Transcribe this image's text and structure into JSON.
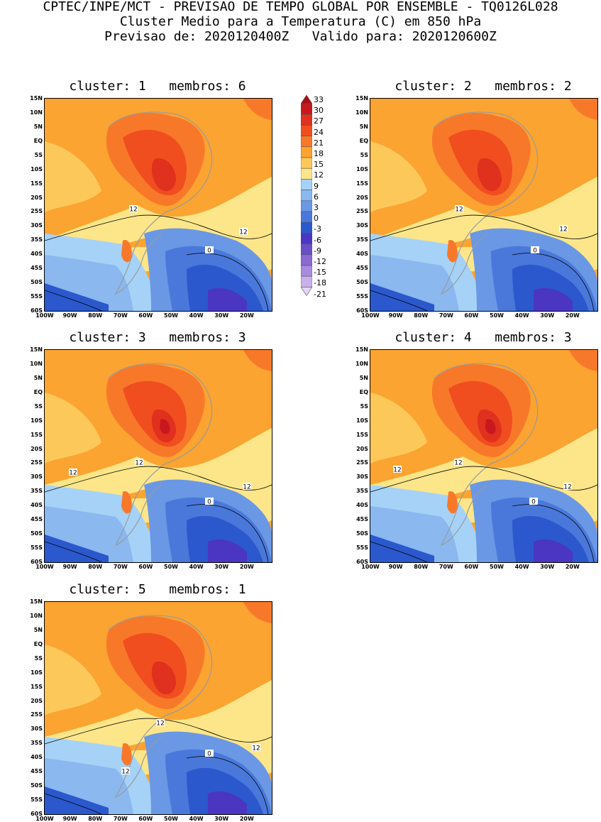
{
  "header": {
    "line1": "CPTEC/INPE/MCT - PREVISAO DE TEMPO GLOBAL POR ENSEMBLE - TQ0126L028",
    "line2": "Cluster Medio para a Temperatura (C) em 850 hPa",
    "line3": "Previsao de: 2020120400Z   Valido para: 2020120600Z"
  },
  "lat_ticks": [
    "15N",
    "10N",
    "5N",
    "EQ",
    "5S",
    "10S",
    "15S",
    "20S",
    "25S",
    "30S",
    "35S",
    "40S",
    "45S",
    "50S",
    "55S",
    "60S"
  ],
  "lon_ticks": [
    "100W",
    "90W",
    "80W",
    "70W",
    "60W",
    "50W",
    "40W",
    "30W",
    "20W"
  ],
  "colorbar": {
    "labels": [
      "33",
      "30",
      "27",
      "24",
      "21",
      "18",
      "15",
      "12",
      "9",
      "6",
      "3",
      "0",
      "-3",
      "-6",
      "-9",
      "-12",
      "-15",
      "-18",
      "-21"
    ],
    "colors": [
      "#a50f15",
      "#c8181e",
      "#e0301e",
      "#f04e1f",
      "#f8782a",
      "#fba431",
      "#fdc85a",
      "#fde68a",
      "#a6d2f7",
      "#8ab8ef",
      "#6a98e4",
      "#4a78da",
      "#2b58cc",
      "#4a36c0",
      "#6a4ec8",
      "#8a6ad2",
      "#a98ade",
      "#c8b0ea",
      "#e2d4f4"
    ]
  },
  "panels": [
    {
      "title": "cluster: 1   membros: 6",
      "contour_labels": [
        "12",
        "12",
        "0"
      ]
    },
    {
      "title": "cluster: 2   membros: 2",
      "contour_labels": [
        "12",
        "12",
        "0"
      ]
    },
    {
      "title": "cluster: 3   membros: 3",
      "contour_labels": [
        "12",
        "12",
        "12",
        "0"
      ]
    },
    {
      "title": "cluster: 4   membros: 3",
      "contour_labels": [
        "12",
        "12",
        "12",
        "0"
      ]
    },
    {
      "title": "cluster: 5   membros: 1",
      "contour_labels": [
        "12",
        "12",
        "12",
        "0"
      ]
    }
  ]
}
